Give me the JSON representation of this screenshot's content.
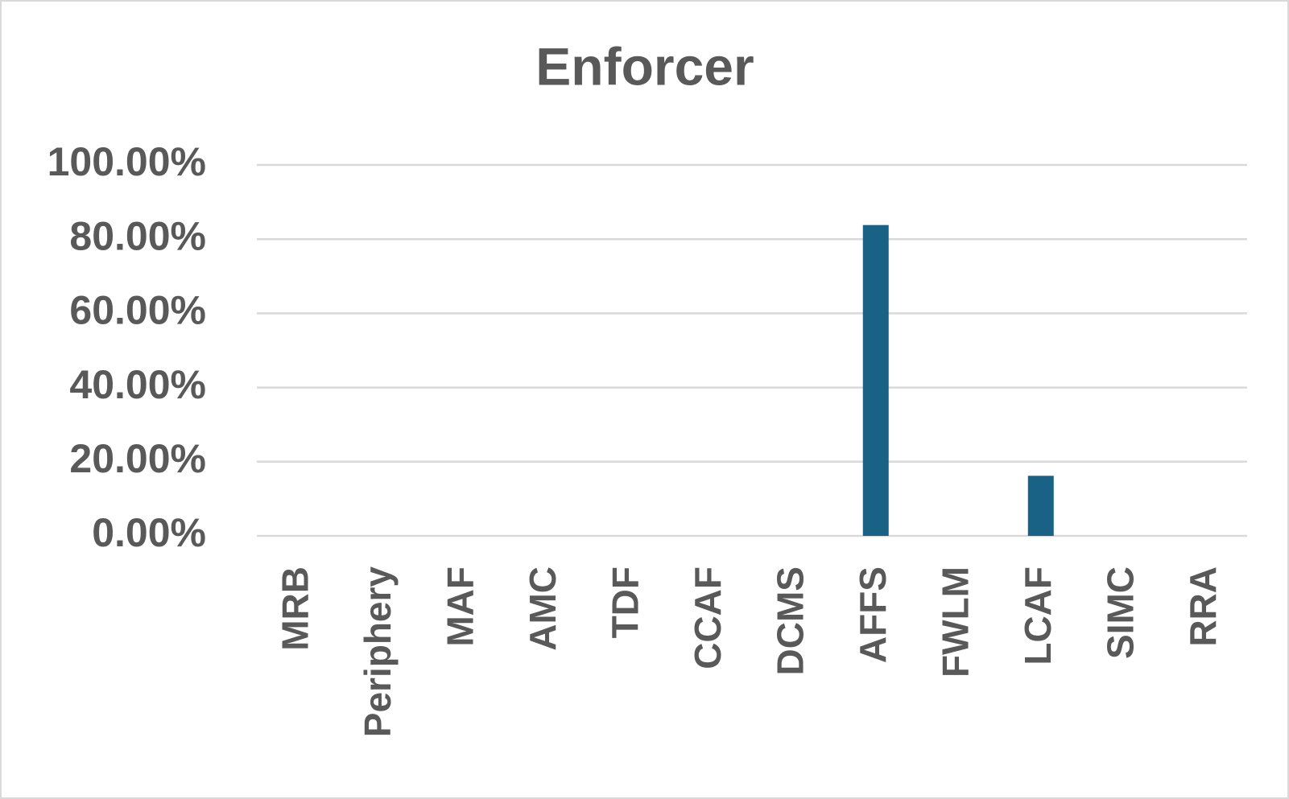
{
  "chart_data": {
    "type": "bar",
    "title": "Enforcer",
    "categories": [
      "MRB",
      "Periphery",
      "MAF",
      "AMC",
      "TDF",
      "CCAF",
      "DCMS",
      "AFFS",
      "FWLM",
      "LCAF",
      "SIMC",
      "RRA"
    ],
    "values": [
      0,
      0,
      0,
      0,
      0,
      0,
      0,
      83.8,
      0,
      16.2,
      0,
      0
    ],
    "color": "#1a6285",
    "ylim": [
      0,
      100
    ],
    "yticks": [
      {
        "value": 0,
        "label": "0.00%"
      },
      {
        "value": 20,
        "label": "20.00%"
      },
      {
        "value": 40,
        "label": "40.00%"
      },
      {
        "value": 60,
        "label": "60.00%"
      },
      {
        "value": 80,
        "label": "80.00%"
      },
      {
        "value": 100,
        "label": "100.00%"
      }
    ],
    "grid": true
  }
}
